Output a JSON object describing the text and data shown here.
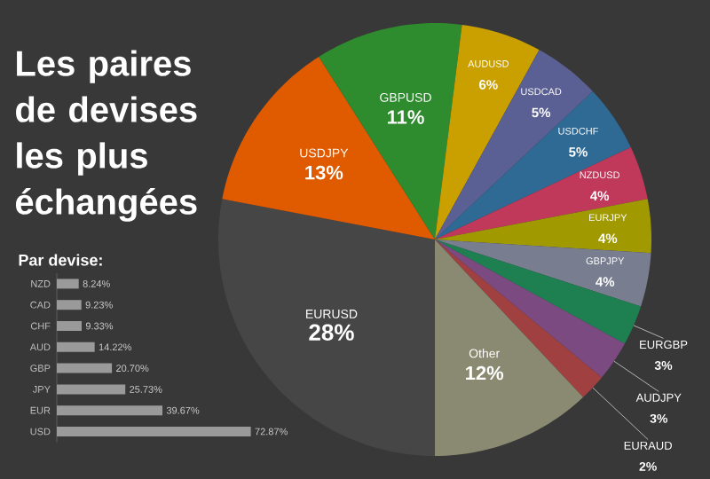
{
  "chart_data": [
    {
      "type": "pie",
      "title": "Les paires de devises les plus échangées",
      "categories": [
        "EURUSD",
        "USDJPY",
        "GBPUSD",
        "AUDUSD",
        "USDCAD",
        "USDCHF",
        "NZDUSD",
        "EURJPY",
        "GBPJPY",
        "EURGBP",
        "AUDJPY",
        "EURAUD",
        "Other"
      ],
      "values": [
        28,
        13,
        11,
        6,
        5,
        5,
        4,
        4,
        4,
        3,
        3,
        2,
        12
      ],
      "value_labels": [
        "28%",
        "13%",
        "11%",
        "6%",
        "5%",
        "5%",
        "4%",
        "4%",
        "4%",
        "3%",
        "3%",
        "2%",
        "12%"
      ],
      "colors": [
        "#464646",
        "#e05a00",
        "#2e8b2e",
        "#c9a000",
        "#5a5f94",
        "#2e6a94",
        "#c0385a",
        "#a09a00",
        "#787d90",
        "#1e8050",
        "#7a4a80",
        "#a04040",
        "#8a8a72"
      ]
    },
    {
      "type": "bar",
      "orientation": "horizontal",
      "title": "Par devise:",
      "categories": [
        "NZD",
        "CAD",
        "CHF",
        "AUD",
        "GBP",
        "JPY",
        "EUR",
        "USD"
      ],
      "values": [
        8.24,
        9.23,
        9.33,
        14.22,
        20.7,
        25.73,
        39.67,
        72.87
      ],
      "value_labels": [
        "8.24%",
        "9.23%",
        "9.33%",
        "14.22%",
        "20.70%",
        "25.73%",
        "39.67%",
        "72.87%"
      ],
      "color": "#9a9a9a"
    }
  ]
}
